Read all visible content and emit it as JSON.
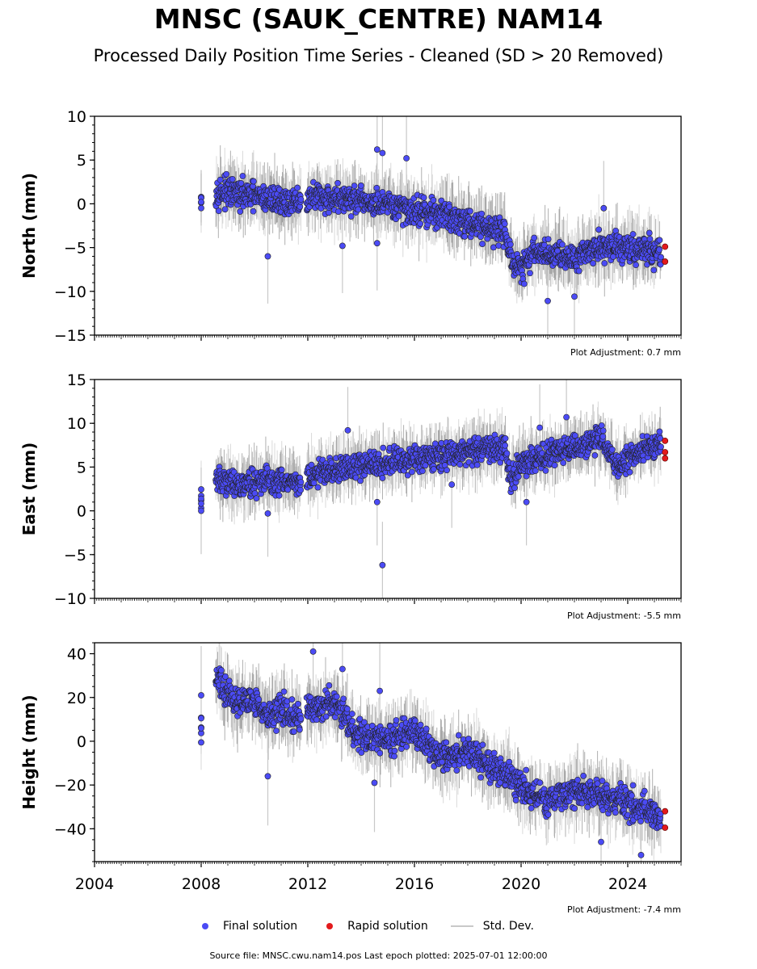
{
  "title": "MNSC (SAUK_CENTRE) NAM14",
  "subtitle": "Processed Daily Position Time Series - Cleaned (SD > 20 Removed)",
  "legend": {
    "final": "Final solution",
    "rapid": "Rapid solution",
    "std": "Std. Dev."
  },
  "source_text": "Source file: MNSC.cwu.nam14.pos  Last epoch plotted: 2025-07-01 12:00:00",
  "colors": {
    "final": "#4b4bf5",
    "rapid": "#e31a1c",
    "std": "#c8c8c8",
    "edge": "#222222"
  },
  "chart_data": [
    {
      "type": "scatter",
      "ylabel": "North (mm)",
      "ylim": [
        -15,
        10
      ],
      "yticks": [
        10,
        5,
        0,
        -5,
        -10,
        -15
      ],
      "xlim": [
        2004,
        2026
      ],
      "xticks": [
        2004,
        2008,
        2012,
        2016,
        2020,
        2024
      ],
      "show_xticklabels": false,
      "adjustment": "Plot Adjustment: 0.7 mm",
      "trend": [
        [
          2008.0,
          0.0
        ],
        [
          2008.6,
          1.5
        ],
        [
          2009.5,
          1.0
        ],
        [
          2011.7,
          0.0
        ],
        [
          2012.0,
          0.8
        ],
        [
          2013.5,
          0.5
        ],
        [
          2015.0,
          -0.3
        ],
        [
          2017.0,
          -1.2
        ],
        [
          2018.5,
          -2.5
        ],
        [
          2019.4,
          -3.2
        ],
        [
          2019.7,
          -7.0
        ],
        [
          2020.0,
          -7.5
        ],
        [
          2020.5,
          -5.5
        ],
        [
          2022.0,
          -6.0
        ],
        [
          2023.0,
          -4.8
        ],
        [
          2025.2,
          -5.5
        ]
      ],
      "noise": 1.2,
      "outliers": [
        [
          2010.5,
          -6.0
        ],
        [
          2014.6,
          6.2
        ],
        [
          2014.8,
          5.8
        ],
        [
          2015.7,
          5.2
        ],
        [
          2014.6,
          -4.5
        ],
        [
          2021.0,
          -11.1
        ],
        [
          2022.0,
          -10.6
        ],
        [
          2023.1,
          -0.5
        ],
        [
          2013.3,
          -4.8
        ]
      ],
      "rapid": [
        [
          2025.4,
          -4.9
        ],
        [
          2025.4,
          -6.6
        ]
      ]
    },
    {
      "type": "scatter",
      "ylabel": "East (mm)",
      "ylim": [
        -10,
        15
      ],
      "yticks": [
        15,
        10,
        5,
        0,
        -5,
        -10
      ],
      "xlim": [
        2004,
        2026
      ],
      "xticks": [
        2004,
        2008,
        2012,
        2016,
        2020,
        2024
      ],
      "show_xticklabels": false,
      "adjustment": "Plot Adjustment: -5.5 mm",
      "trend": [
        [
          2008.0,
          1.5
        ],
        [
          2008.6,
          3.5
        ],
        [
          2009.6,
          3.0
        ],
        [
          2010.5,
          3.5
        ],
        [
          2011.7,
          3.0
        ],
        [
          2012.0,
          4.0
        ],
        [
          2013.5,
          5.0
        ],
        [
          2015.0,
          5.5
        ],
        [
          2016.5,
          6.2
        ],
        [
          2018.5,
          7.0
        ],
        [
          2019.4,
          7.2
        ],
        [
          2019.6,
          3.5
        ],
        [
          2020.0,
          5.5
        ],
        [
          2021.5,
          7.0
        ],
        [
          2022.5,
          7.5
        ],
        [
          2023.0,
          8.5
        ],
        [
          2023.6,
          5.0
        ],
        [
          2025.2,
          8.0
        ]
      ],
      "noise": 1.1,
      "outliers": [
        [
          2014.8,
          -6.2
        ],
        [
          2014.6,
          1.0
        ],
        [
          2010.5,
          -0.3
        ],
        [
          2013.5,
          9.2
        ],
        [
          2021.7,
          10.7
        ],
        [
          2020.7,
          9.5
        ],
        [
          2020.2,
          1.0
        ],
        [
          2017.4,
          3.0
        ],
        [
          2008.0,
          0.0
        ]
      ],
      "rapid": [
        [
          2025.4,
          8.0
        ],
        [
          2025.4,
          6.7
        ],
        [
          2025.4,
          6.0
        ]
      ]
    },
    {
      "type": "scatter",
      "ylabel": "Height (mm)",
      "ylim": [
        -55,
        45
      ],
      "yticks": [
        40,
        20,
        0,
        -20,
        -40
      ],
      "xlim": [
        2004,
        2026
      ],
      "xticks": [
        2004,
        2008,
        2012,
        2016,
        2020,
        2024
      ],
      "show_xticklabels": true,
      "adjustment": "Plot Adjustment: -7.4 mm",
      "trend": [
        [
          2008.0,
          5.0
        ],
        [
          2008.6,
          28.0
        ],
        [
          2009.3,
          18.0
        ],
        [
          2010.0,
          20.0
        ],
        [
          2010.5,
          10.0
        ],
        [
          2011.0,
          15.0
        ],
        [
          2011.7,
          10.0
        ],
        [
          2012.0,
          15.0
        ],
        [
          2013.0,
          18.0
        ],
        [
          2013.7,
          5.0
        ],
        [
          2015.0,
          0.0
        ],
        [
          2016.0,
          5.0
        ],
        [
          2017.0,
          -8.0
        ],
        [
          2018.0,
          -5.0
        ],
        [
          2019.0,
          -12.0
        ],
        [
          2020.0,
          -20.0
        ],
        [
          2021.0,
          -28.0
        ],
        [
          2022.0,
          -22.0
        ],
        [
          2023.0,
          -25.0
        ],
        [
          2024.0,
          -28.0
        ],
        [
          2025.2,
          -35.0
        ]
      ],
      "noise": 5.0,
      "outliers": [
        [
          2012.2,
          41.0
        ],
        [
          2010.5,
          -16.0
        ],
        [
          2024.5,
          -52.0
        ],
        [
          2013.3,
          33.0
        ],
        [
          2014.7,
          23.0
        ],
        [
          2014.5,
          -19.0
        ],
        [
          2023.0,
          -46.0
        ],
        [
          2008.0,
          21.0
        ]
      ],
      "rapid": [
        [
          2025.4,
          -32.0
        ],
        [
          2025.4,
          -39.5
        ]
      ]
    }
  ]
}
